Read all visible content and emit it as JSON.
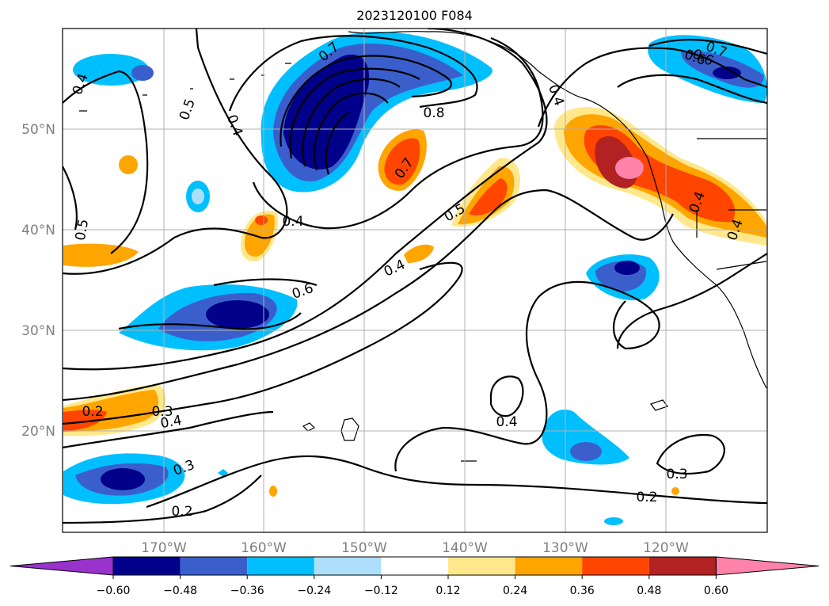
{
  "title": "2023120100 F084",
  "lat_labels": [
    "50°N",
    "40°N",
    "30°N",
    "20°N"
  ],
  "lon_labels": [
    "170°W",
    "160°W",
    "150°W",
    "140°W",
    "130°W",
    "120°W"
  ],
  "contour_labels": [
    "0.4",
    "0.5",
    "0.4",
    "0.5",
    "0.4",
    "0.6",
    "0.7",
    "0.8",
    "0.7",
    "0.4",
    "0.5",
    "0.4",
    "0.6",
    "0.4",
    "0.4",
    "0.2",
    "0.3",
    "0.4",
    "0.3",
    "0.2",
    "0.4",
    "0.3",
    "0.2",
    "0.6",
    "0.7"
  ],
  "colorbar": {
    "ticks": [
      "−0.60",
      "−0.48",
      "−0.36",
      "−0.24",
      "−0.12",
      "0.12",
      "0.24",
      "0.36",
      "0.48",
      "0.60"
    ],
    "colors": [
      "#9932CC",
      "#00008B",
      "#3A5FCD",
      "#00BFFF",
      "#ADDFFA",
      "#FFFFFF",
      "#FFE88C",
      "#FFA500",
      "#FF4500",
      "#B22222",
      "#FF82AB"
    ]
  }
}
